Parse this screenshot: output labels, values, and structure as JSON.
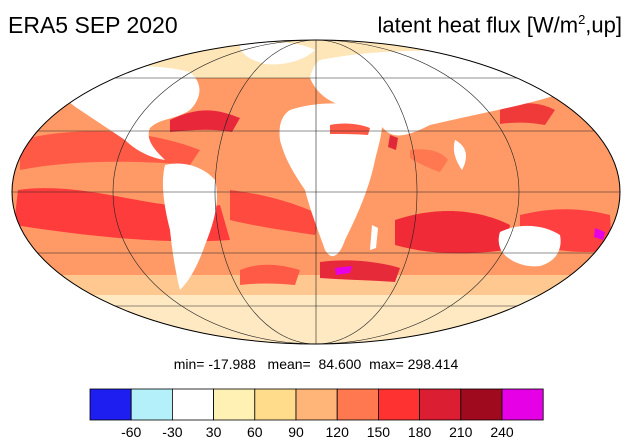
{
  "title": "ERA5 SEP 2020",
  "variable_label": "latent heat flux [W/m",
  "variable_sup": "2",
  "variable_suffix": ",up]",
  "stats": {
    "min_label": "min=",
    "min_value": "-17.988",
    "mean_label": "mean=",
    "mean_value": "84.600",
    "max_label": "max=",
    "max_value": "298.414"
  },
  "colorbar": {
    "colors": [
      "#1e1ef0",
      "#b4f0fa",
      "#ffffff",
      "#fff0b4",
      "#ffdc8c",
      "#ffb478",
      "#ff7850",
      "#ff3232",
      "#dc1e32",
      "#a00a1e",
      "#e600e6"
    ],
    "tick_labels": [
      "-60",
      "-30",
      "30",
      "60",
      "90",
      "120",
      "150",
      "180",
      "210",
      "240"
    ]
  },
  "map": {
    "projection": "Mollweide",
    "land_color": "#ffffff",
    "ocean_base_color": "#ff7850"
  }
}
